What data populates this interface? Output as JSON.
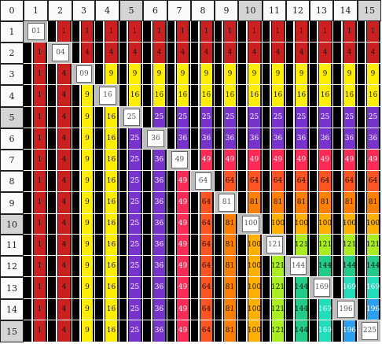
{
  "corner_label": "0",
  "column_headers": [
    "1",
    "2",
    "3",
    "4",
    "5",
    "6",
    "7",
    "8",
    "9",
    "10",
    "11",
    "12",
    "13",
    "14",
    "15"
  ],
  "row_headers": [
    "1",
    "2",
    "3",
    "4",
    "5",
    "6",
    "7",
    "8",
    "9",
    "10",
    "11",
    "12",
    "13",
    "14",
    "15"
  ],
  "highlighted_headers": [
    "5",
    "10",
    "15"
  ],
  "products": {
    "1": "1",
    "2": "4",
    "3": "9",
    "4": "16",
    "5": "25",
    "6": "36",
    "7": "49",
    "8": "64",
    "9": "81",
    "10": "100",
    "11": "121",
    "12": "144",
    "13": "169",
    "14": "196",
    "15": "225"
  },
  "diagonal_labels": [
    "01",
    "04",
    "09",
    "16",
    "25",
    "36",
    "49",
    "64",
    "81",
    "100",
    "121",
    "144",
    "169",
    "196",
    "225"
  ],
  "colors": {
    "1": "#cc1f1f",
    "2": "#cc1f1f",
    "3": "#ffee00",
    "4": "#ffee00",
    "5": "#7733cc",
    "6": "#7733cc",
    "7": "#ff2a55",
    "8": "#ff5522",
    "9": "#ff7f00",
    "10": "#ffb000",
    "11": "#aaee22",
    "12": "#22cc88",
    "13": "#22ddbb",
    "14": "#2aa0ee",
    "15": "#8833dd",
    "diagonal_bg": "#bdbdbd",
    "cell_bg": "#000000",
    "header_bg": "#fafafa",
    "header_highlight": "#d4d4d4"
  }
}
